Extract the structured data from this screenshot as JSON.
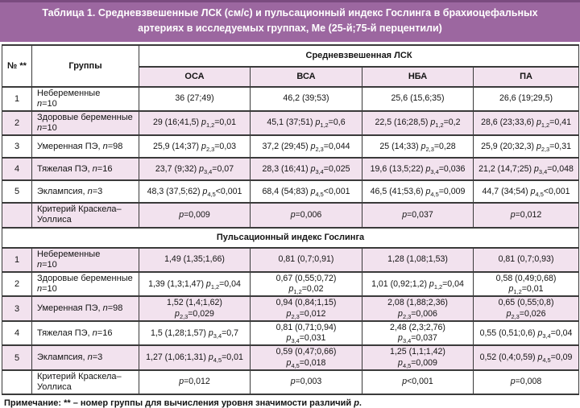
{
  "title": "Таблица 1. Средневзвешенные ЛСК (см/с) и пульсационный индекс Гослинга в брахиоцефальных артериях в исследуемых группах, Ме (25-й;75-й перцентили)",
  "note": "Примечание: ** – номер группы для вычисления уровня значимости различий p.",
  "colors": {
    "band": "#9c67a0",
    "band_edge": "#7a4b7f",
    "row_pink": "#f2e2ee",
    "border": "#3a3a3a"
  },
  "table": {
    "corner_num": "№ **",
    "corner_groups": "Группы",
    "span_header": "Средневзвешенная ЛСК",
    "columns": [
      "ОСА",
      "ВСА",
      "НБА",
      "ПА"
    ],
    "kruskal_label": "Критерий Краскела–\nУоллиса",
    "sections": [
      {
        "name": "Средневзвешенная ЛСК",
        "rows": [
          {
            "num": "1",
            "group": "Небеременные\nn=10",
            "values": [
              "36 (27;49)",
              "46,2 (39;53)",
              "25,6 (15,6;35)",
              "26,6 (19;29,5)"
            ]
          },
          {
            "num": "2",
            "group": "Здоровые беременные\nn=10",
            "values": [
              "29 (16;41,5) p_{1,2}=0,01",
              "45,1 (37;51) p_{1,2}=0,6",
              "22,5 (16;28,5) p_{1,2}=0,2",
              "28,6 (23;33,6) p_{1,2}=0,41"
            ]
          },
          {
            "num": "3",
            "group": "Умеренная ПЭ, n=98",
            "values": [
              "25,9 (14;37) p_{2,3}=0,03",
              "37,2 (29;45) p_{2,3}=0,044",
              "25 (14;33) p_{2,3}=0,28",
              "25,9 (20;32,3) p_{2,3}=0,31"
            ]
          },
          {
            "num": "4",
            "group": "Тяжелая ПЭ, n=16",
            "values": [
              "23,7 (9;32) p_{3,4}=0,07",
              "28,3 (16;41) p_{3,4}=0,025",
              "19,6 (13,5;22) p_{3,4}=0,036",
              "21,2 (14,7;25) p_{3,4}=0,048"
            ]
          },
          {
            "num": "5",
            "group": "Эклампсия, n=3",
            "values": [
              "48,3 (37,5;62) p_{4,5}<0,001",
              "68,4 (54;83) p_{4,5}<0,001",
              "46,5 (41;53,6) p_{4,5}=0,009",
              "44,7 (34;54) p_{4,5}<0,001"
            ]
          }
        ],
        "kruskal": [
          "p=0,009",
          "p=0,006",
          "p=0,037",
          "p=0,012"
        ]
      },
      {
        "name": "Пульсационный индекс Гослинга",
        "rows": [
          {
            "num": "1",
            "group": "Небеременные\nn=10",
            "values": [
              "1,49 (1,35;1,66)",
              "0,81 (0,7;0,91)",
              "1,28 (1,08;1,53)",
              "0,81 (0,7;0,93)"
            ]
          },
          {
            "num": "2",
            "group": "Здоровые беременные\nn=10",
            "values": [
              "1,39 (1,3;1,47) p_{1,2}=0,04",
              "0,67 (0,55;0,72)\np_{1,2}=0,02",
              "1,01 (0,92;1,2) p_{1,2}=0,04",
              "0,58 (0,49;0,68)\np_{1,2}=0,01"
            ]
          },
          {
            "num": "3",
            "group": "Умеренная ПЭ, n=98",
            "values": [
              "1,52 (1,4;1,62)\np_{2,3}=0,029",
              "0,94 (0,84;1,15)\np_{2,3}=0,012",
              "2,08 (1,88;2,36)\np_{2,3}=0,006",
              "0,65 (0,55;0,8)\np_{2,3}=0,026"
            ]
          },
          {
            "num": "4",
            "group": "Тяжелая ПЭ, n=16",
            "values": [
              "1,5 (1,28;1,57) p_{3,4}=0,7",
              "0,81 (0,71;0,94)\np_{3,4}=0,031",
              "2,48 (2,3;2,76)\np_{3,4}=0,037",
              "0,55 (0,51;0,6) p_{3,4}=0,04"
            ]
          },
          {
            "num": "5",
            "group": "Эклампсия, n=3",
            "values": [
              "1,27 (1,06;1,31) p_{4,5}=0,01",
              "0,59 (0,47;0,66)\np_{4,5}=0,018",
              "1,25 (1,1;1,42)\np_{4,5}=0,009",
              "0,52 (0,4;0,59) p_{4,5}=0,09"
            ]
          }
        ],
        "kruskal": [
          "p=0,012",
          "p=0,003",
          "p<0,001",
          "p=0,008"
        ]
      }
    ]
  }
}
